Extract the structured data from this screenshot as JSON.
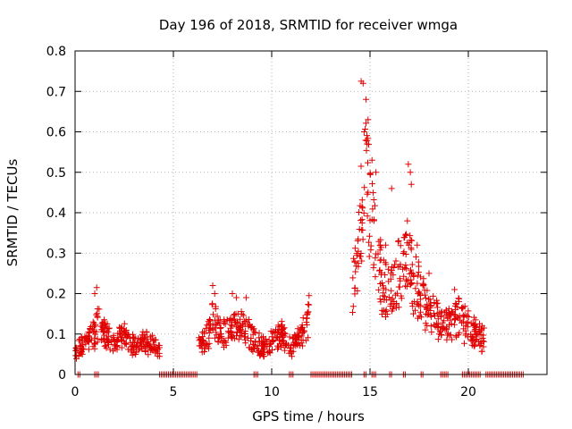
{
  "chart_data": {
    "type": "scatter",
    "title": "Day 196 of 2018, SRMTID for receiver wmga",
    "xlabel": "GPS time / hours",
    "ylabel": "SRMTID / TECUs",
    "xlim": [
      0,
      24
    ],
    "ylim": [
      0,
      0.8
    ],
    "xticks": [
      0,
      5,
      10,
      15,
      20
    ],
    "yticks": [
      0,
      0.1,
      0.2,
      0.3,
      0.4,
      0.5,
      0.6,
      0.7,
      0.8
    ],
    "grid": true,
    "marker": "+",
    "marker_color": "#e00000",
    "trend": [
      [
        0.0,
        0.06
      ],
      [
        0.5,
        0.08
      ],
      [
        1.0,
        0.1
      ],
      [
        1.2,
        0.13
      ],
      [
        1.5,
        0.1
      ],
      [
        2.0,
        0.08
      ],
      [
        2.5,
        0.1
      ],
      [
        3.0,
        0.07
      ],
      [
        3.5,
        0.08
      ],
      [
        4.0,
        0.07
      ],
      [
        4.3,
        0.06
      ],
      [
        6.3,
        0.07
      ],
      [
        6.8,
        0.1
      ],
      [
        7.0,
        0.14
      ],
      [
        7.5,
        0.1
      ],
      [
        8.0,
        0.11
      ],
      [
        8.5,
        0.12
      ],
      [
        9.0,
        0.09
      ],
      [
        9.5,
        0.07
      ],
      [
        10.0,
        0.08
      ],
      [
        10.5,
        0.1
      ],
      [
        11.0,
        0.07
      ],
      [
        11.5,
        0.09
      ],
      [
        11.9,
        0.14
      ],
      [
        14.1,
        0.22
      ],
      [
        14.5,
        0.38
      ],
      [
        14.8,
        0.55
      ],
      [
        15.0,
        0.4
      ],
      [
        15.3,
        0.34
      ],
      [
        15.6,
        0.22
      ],
      [
        16.0,
        0.2
      ],
      [
        16.4,
        0.24
      ],
      [
        16.9,
        0.3
      ],
      [
        17.3,
        0.22
      ],
      [
        17.8,
        0.17
      ],
      [
        18.3,
        0.14
      ],
      [
        18.7,
        0.12
      ],
      [
        19.2,
        0.13
      ],
      [
        19.5,
        0.14
      ],
      [
        20.6,
        0.09
      ],
      [
        20.8,
        0.08
      ]
    ],
    "spikes": [
      [
        1.1,
        0.215
      ],
      [
        1.0,
        0.2
      ],
      [
        7.0,
        0.22
      ],
      [
        7.1,
        0.2
      ],
      [
        8.0,
        0.2
      ],
      [
        8.2,
        0.19
      ],
      [
        8.7,
        0.19
      ],
      [
        11.9,
        0.195
      ],
      [
        14.55,
        0.725
      ],
      [
        14.65,
        0.72
      ],
      [
        14.8,
        0.68
      ],
      [
        14.9,
        0.63
      ],
      [
        14.7,
        0.6
      ],
      [
        15.1,
        0.53
      ],
      [
        15.3,
        0.5
      ],
      [
        14.85,
        0.57
      ],
      [
        16.1,
        0.46
      ],
      [
        16.95,
        0.52
      ],
      [
        17.05,
        0.5
      ],
      [
        17.1,
        0.47
      ],
      [
        15.8,
        0.32
      ],
      [
        16.9,
        0.38
      ],
      [
        17.4,
        0.32
      ],
      [
        18.0,
        0.25
      ],
      [
        19.3,
        0.21
      ],
      [
        20.7,
        0.12
      ],
      [
        20.8,
        0.115
      ]
    ],
    "seed": 196
  }
}
